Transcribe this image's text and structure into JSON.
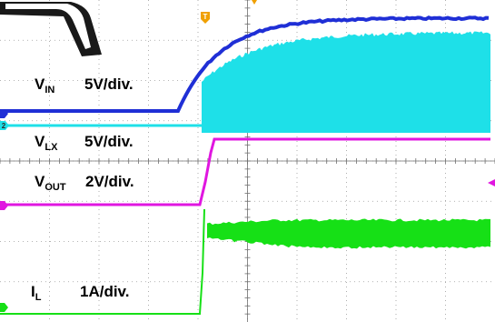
{
  "colors": {
    "background": "#ffffff",
    "grid": "#9a9a9a",
    "axis": "#6f6f6f",
    "vin": "#1f2fd6",
    "vlx": "#1ee0e8",
    "vout": "#e016e0",
    "il": "#16e016",
    "trigger": "#f0a000",
    "ch2_marker": "#1ee0e8"
  },
  "channels": [
    {
      "id": "vin",
      "symbol": "V",
      "sub": "IN",
      "scale": "5V/div."
    },
    {
      "id": "vlx",
      "symbol": "V",
      "sub": "LX",
      "scale": "5V/div."
    },
    {
      "id": "vout",
      "symbol": "V",
      "sub": "OUT",
      "scale": "2V/div."
    },
    {
      "id": "il",
      "symbol": "I",
      "sub": "L",
      "scale": "1A/div."
    }
  ],
  "markers": {
    "trigger": "T",
    "channel2": "2"
  },
  "icons": [
    "trigger-marker-icon",
    "trigger-level-arrow-icon",
    "channel-ground-marker-icon",
    "watermark-shape"
  ]
}
